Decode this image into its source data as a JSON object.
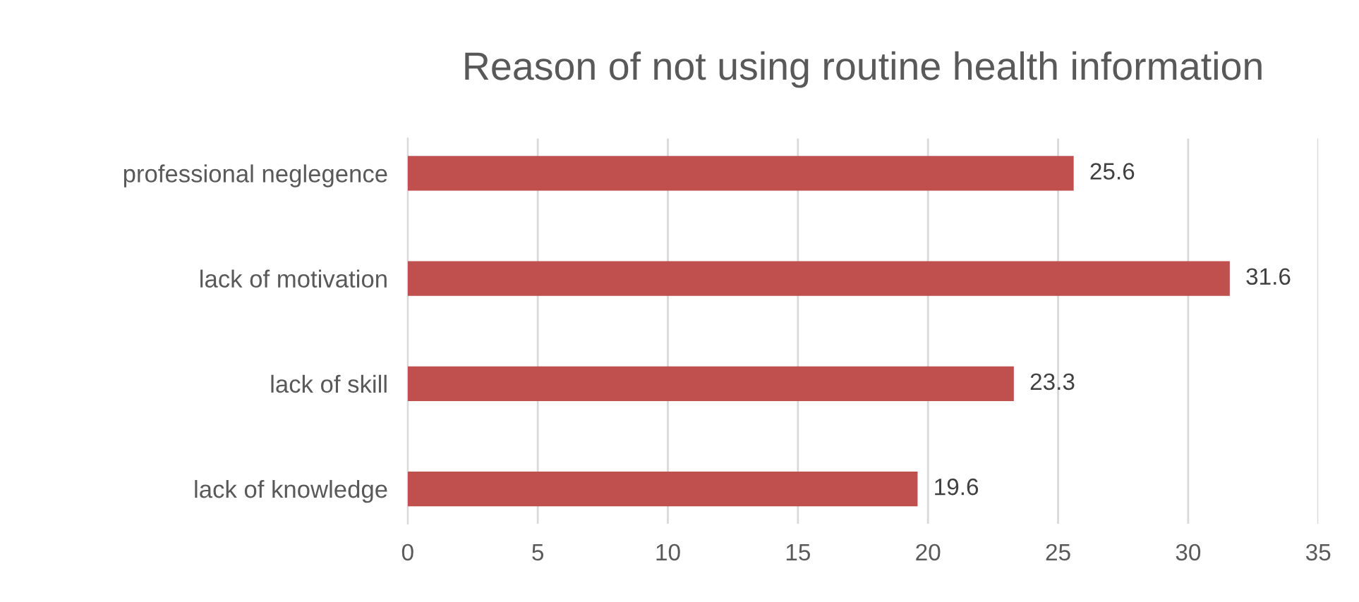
{
  "chart_data": {
    "type": "bar",
    "orientation": "horizontal",
    "title": "Reason of not using routine health information",
    "categories": [
      "professional neglegence",
      "lack of motivation",
      "lack of skill",
      "lack of knowledge"
    ],
    "values": [
      25.6,
      31.6,
      23.3,
      19.6
    ],
    "color": "#c0504d",
    "xlim": [
      0,
      35
    ],
    "xticks": [
      0,
      5,
      10,
      15,
      20,
      25,
      30,
      35
    ],
    "grid": "x",
    "data_labels": true
  }
}
